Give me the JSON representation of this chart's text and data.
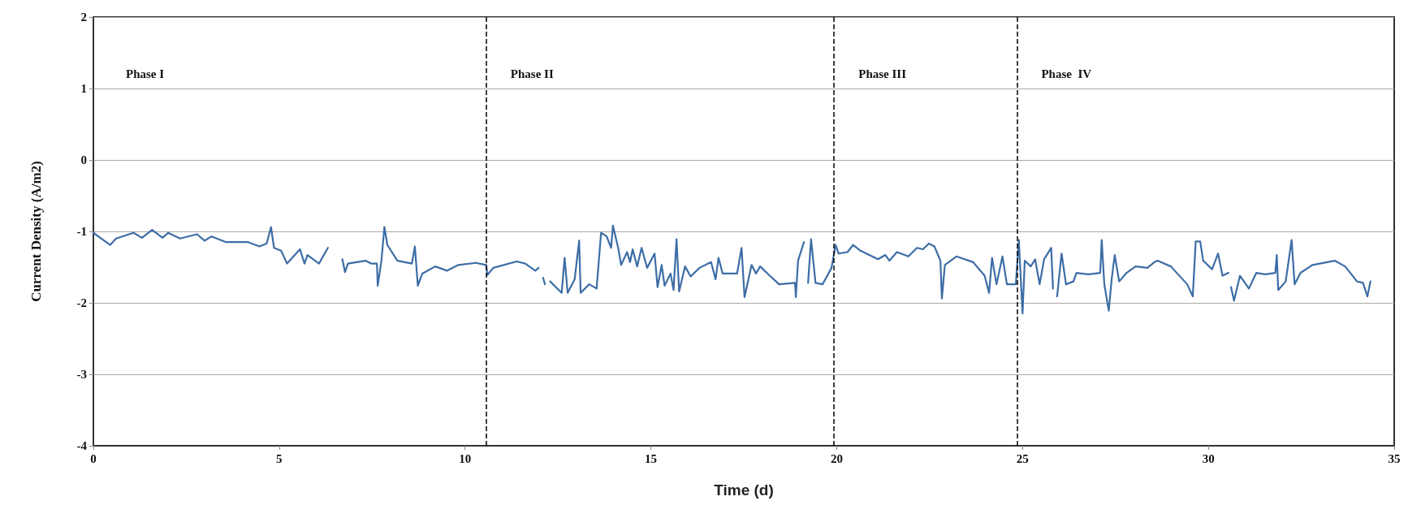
{
  "chart_data": {
    "type": "line",
    "xlabel": "Time (d)",
    "ylabel": "Current Density (A/m2)",
    "xlim": [
      0,
      35
    ],
    "xticks": [
      0,
      5,
      10,
      15,
      20,
      25,
      30,
      35
    ],
    "ylim": [
      -4,
      2
    ],
    "yticks": [
      -4,
      -3,
      -2,
      -1,
      0,
      1,
      2
    ],
    "grid": "y",
    "marker": "none",
    "line_style": "solid",
    "ref_lines": [
      {
        "axis": "x",
        "value": 10.57,
        "color": "#000000",
        "line_style": "dashed"
      },
      {
        "axis": "x",
        "value": 19.93,
        "color": "#000000",
        "line_style": "dashed"
      },
      {
        "axis": "x",
        "value": 24.85,
        "color": "#000000",
        "line_style": "dashed"
      }
    ],
    "annotations": [
      "Phase I",
      "Phase II",
      "Phase III",
      "Phase  IV"
    ],
    "series": [
      {
        "color": "#3d6da6",
        "x": [
          0,
          0.29,
          0.45,
          0.61,
          1.08,
          1.31,
          1.58,
          1.86,
          2.01,
          2.33,
          2.79,
          2.99,
          3.18,
          3.57,
          3.96,
          4.16,
          4.47,
          4.66,
          4.78,
          4.86,
          5.05,
          5.21,
          5.56,
          5.68,
          5.76,
          6.07,
          6.31,
          6.5,
          6.7,
          6.77,
          6.85,
          7.32,
          7.47,
          7.63,
          7.65,
          7.75,
          7.83,
          7.91,
          8.18,
          8.57,
          8.65,
          8.73,
          8.85,
          9.2,
          9.51,
          9.82,
          10.29,
          10.57,
          10.6,
          10.76,
          11.39,
          11.62,
          11.89,
          11.98,
          12.02,
          12.1,
          12.15,
          12.2,
          12.29,
          12.6,
          12.68,
          12.76,
          12.95,
          13.07,
          13.11,
          13.34,
          13.54,
          13.66,
          13.81,
          13.93,
          13.98,
          14.12,
          14.2,
          14.36,
          14.44,
          14.51,
          14.63,
          14.75,
          14.9,
          15.1,
          15.18,
          15.29,
          15.37,
          15.53,
          15.61,
          15.69,
          15.76,
          15.92,
          16.07,
          16.31,
          16.62,
          16.74,
          16.82,
          16.93,
          17.32,
          17.44,
          17.52,
          17.71,
          17.83,
          17.94,
          18.18,
          18.45,
          18.88,
          18.9,
          18.96,
          19.12,
          19.18,
          19.23,
          19.31,
          19.43,
          19.62,
          19.86,
          19.97,
          20.05,
          20.29,
          20.44,
          20.64,
          21.11,
          21.31,
          21.42,
          21.62,
          21.93,
          22.16,
          22.32,
          22.48,
          22.63,
          22.79,
          22.83,
          22.91,
          23.22,
          23.67,
          23.98,
          24.1,
          24.18,
          24.3,
          24.46,
          24.58,
          24.82,
          24.9,
          25.0,
          25.06,
          25.22,
          25.34,
          25.46,
          25.58,
          25.77,
          25.82,
          25.87,
          25.93,
          26.05,
          26.17,
          26.37,
          26.45,
          26.77,
          27.09,
          27.13,
          27.2,
          27.32,
          27.4,
          27.48,
          27.6,
          27.8,
          28.04,
          28.36,
          28.55,
          28.63,
          28.99,
          29.43,
          29.58,
          29.66,
          29.78,
          29.86,
          30.1,
          30.26,
          30.38,
          30.54,
          30.58,
          30.61,
          30.69,
          30.85,
          31.09,
          31.29,
          31.53,
          31.8,
          31.84,
          31.88,
          32.08,
          32.24,
          32.32,
          32.48,
          32.8,
          33.2,
          33.4,
          33.68,
          34.0,
          34.16,
          34.28,
          34.36
        ],
        "values": [
          -1.02,
          -1.13,
          -1.19,
          -1.1,
          -1.02,
          -1.09,
          -0.98,
          -1.09,
          -1.02,
          -1.1,
          -1.04,
          -1.13,
          -1.07,
          -1.15,
          -1.15,
          -1.15,
          -1.21,
          -1.17,
          -0.94,
          -1.23,
          -1.27,
          -1.45,
          -1.25,
          -1.45,
          -1.33,
          -1.45,
          -1.23,
          null,
          -1.39,
          -1.57,
          -1.45,
          -1.41,
          -1.45,
          -1.45,
          -1.76,
          -1.41,
          -0.94,
          -1.19,
          -1.41,
          -1.45,
          -1.21,
          -1.76,
          -1.59,
          -1.49,
          -1.55,
          -1.47,
          -1.44,
          -1.47,
          -1.61,
          -1.51,
          -1.42,
          -1.45,
          -1.55,
          -1.51,
          null,
          -1.65,
          -1.74,
          null,
          -1.7,
          -1.86,
          -1.37,
          -1.86,
          -1.67,
          -1.13,
          -1.86,
          -1.74,
          -1.8,
          -1.02,
          -1.07,
          -1.23,
          -0.92,
          -1.23,
          -1.47,
          -1.29,
          -1.43,
          -1.25,
          -1.49,
          -1.23,
          -1.51,
          -1.31,
          -1.78,
          -1.47,
          -1.76,
          -1.59,
          -1.82,
          -1.11,
          -1.84,
          -1.49,
          -1.63,
          -1.51,
          -1.43,
          -1.67,
          -1.37,
          -1.59,
          -1.59,
          -1.23,
          -1.92,
          -1.47,
          -1.59,
          -1.49,
          -1.61,
          -1.74,
          -1.72,
          -1.92,
          -1.41,
          -1.15,
          null,
          -1.72,
          -1.11,
          -1.72,
          -1.74,
          -1.51,
          -1.19,
          -1.31,
          -1.29,
          -1.19,
          -1.27,
          -1.39,
          -1.33,
          -1.41,
          -1.29,
          -1.35,
          -1.23,
          -1.25,
          -1.17,
          -1.21,
          -1.41,
          -1.94,
          -1.47,
          -1.35,
          -1.43,
          -1.62,
          -1.86,
          -1.37,
          -1.74,
          -1.35,
          -1.74,
          -1.74,
          -1.12,
          -2.15,
          -1.41,
          -1.49,
          -1.39,
          -1.74,
          -1.39,
          -1.23,
          -1.8,
          null,
          -1.91,
          -1.31,
          -1.74,
          -1.7,
          -1.58,
          -1.6,
          -1.58,
          -1.12,
          -1.74,
          -2.11,
          -1.66,
          -1.33,
          -1.7,
          -1.58,
          -1.49,
          -1.51,
          -1.43,
          -1.41,
          -1.49,
          -1.74,
          -1.91,
          -1.14,
          -1.14,
          -1.41,
          -1.53,
          -1.31,
          -1.62,
          -1.58,
          null,
          -1.78,
          -1.97,
          -1.62,
          -1.8,
          -1.58,
          -1.6,
          -1.58,
          -1.33,
          -1.82,
          -1.7,
          -1.12,
          -1.74,
          -1.58,
          -1.47,
          -1.43,
          -1.41,
          -1.49,
          -1.7,
          -1.72,
          -1.91,
          -1.7
        ]
      }
    ]
  }
}
